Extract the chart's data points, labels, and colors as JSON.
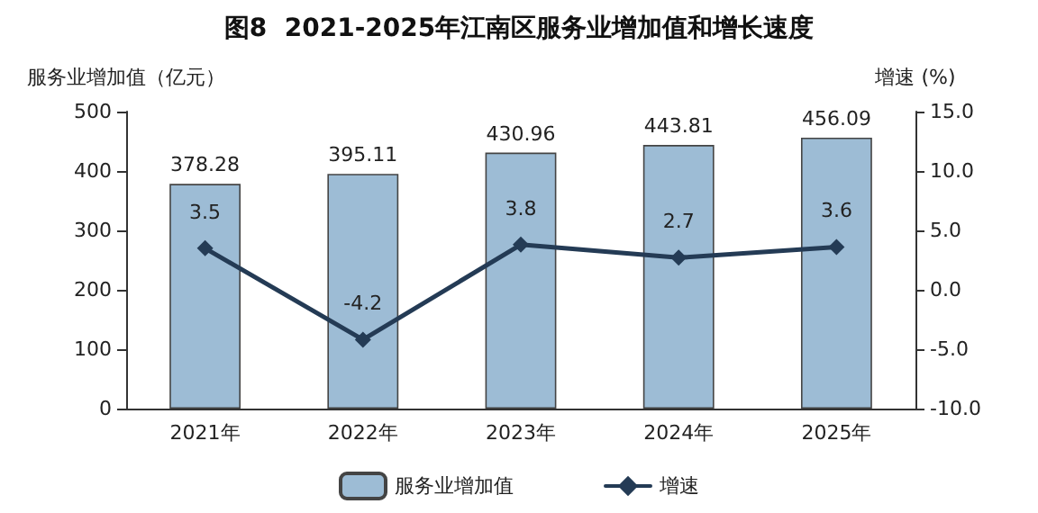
{
  "chart_data": {
    "type": "bar",
    "title": "图8  2021-2025年江南区服务业增加值和增长速度",
    "categories": [
      "2021年",
      "2022年",
      "2023年",
      "2024年",
      "2025年"
    ],
    "series": [
      {
        "name": "服务业增加值",
        "color": "#9dbcd5",
        "values": [
          378.28,
          395.11,
          430.96,
          443.81,
          456.09
        ]
      },
      {
        "name": "增速",
        "type": "line",
        "axis": "y2",
        "color": "#243b55",
        "values": [
          3.5,
          -4.2,
          3.8,
          2.7,
          3.6
        ]
      }
    ],
    "ylabel": "服务业增加值（亿元）",
    "y2label": "增速 (%)",
    "ylim": [
      0,
      500
    ],
    "yticks": [
      0,
      100,
      200,
      300,
      400,
      500
    ],
    "y2lim": [
      -10,
      15
    ],
    "y2ticks": [
      {
        "value": -10,
        "label": "-10.0"
      },
      {
        "value": -5,
        "label": "-5.0"
      },
      {
        "value": 0,
        "label": "0.0"
      },
      {
        "value": 5,
        "label": "5.0"
      },
      {
        "value": 10,
        "label": "10.0"
      },
      {
        "value": 15,
        "label": "15.0"
      }
    ],
    "data_labels": true,
    "legend": "bottom",
    "grid": false,
    "marker": "diamond",
    "line_style": "solid"
  }
}
